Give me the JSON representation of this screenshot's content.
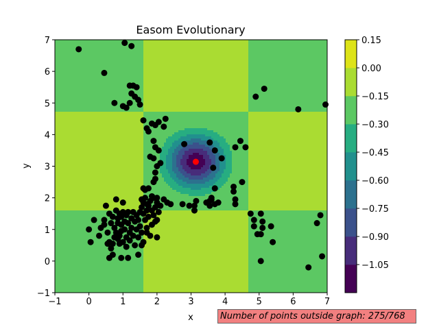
{
  "chart_data": {
    "type": "contour-scatter",
    "title": "Easom Evolutionary",
    "xlabel": "x",
    "ylabel": "y",
    "xlim": [
      -1,
      7
    ],
    "ylim": [
      -1,
      7
    ],
    "xticks": [
      "−1",
      "0",
      "1",
      "2",
      "3",
      "4",
      "5",
      "6",
      "7"
    ],
    "yticks": [
      "−1",
      "0",
      "1",
      "2",
      "3",
      "4",
      "5",
      "6",
      "7"
    ],
    "colorbar": {
      "levels": [
        -1.05,
        -0.9,
        -0.75,
        -0.6,
        -0.45,
        -0.3,
        -0.15,
        0.0,
        0.15
      ],
      "labels": [
        "0.15",
        "0.00",
        "−0.15",
        "−0.30",
        "−0.45",
        "−0.60",
        "−0.75",
        "−0.90",
        "−1.05"
      ],
      "colors": [
        "#440154",
        "#472c7a",
        "#3b518b",
        "#2c718e",
        "#21908d",
        "#27ad81",
        "#5cc863",
        "#aadc32",
        "#dde318"
      ]
    },
    "contour": {
      "function": "easom",
      "minimum": [
        3.1416,
        3.1416
      ],
      "band_edges_x": [
        1.57,
        4.71
      ],
      "band_edges_y": [
        1.57,
        4.71
      ]
    },
    "best_point": {
      "x": 3.14,
      "y": 3.14,
      "color": "#ff0000"
    },
    "points": [
      [
        -0.3,
        6.7
      ],
      [
        1.05,
        6.9
      ],
      [
        1.25,
        6.8
      ],
      [
        0.45,
        5.95
      ],
      [
        0.75,
        5.0
      ],
      [
        1.0,
        4.9
      ],
      [
        1.1,
        4.85
      ],
      [
        1.2,
        5.0
      ],
      [
        1.25,
        5.3
      ],
      [
        1.3,
        5.55
      ],
      [
        1.4,
        5.5
      ],
      [
        1.45,
        5.1
      ],
      [
        1.5,
        4.95
      ],
      [
        1.35,
        5.2
      ],
      [
        1.2,
        5.55
      ],
      [
        4.9,
        5.2
      ],
      [
        5.15,
        5.45
      ],
      [
        6.15,
        4.8
      ],
      [
        6.95,
        4.95
      ],
      [
        1.6,
        4.45
      ],
      [
        1.7,
        4.2
      ],
      [
        1.85,
        4.35
      ],
      [
        1.95,
        4.3
      ],
      [
        2.05,
        4.4
      ],
      [
        2.2,
        4.25
      ],
      [
        2.25,
        4.5
      ],
      [
        1.75,
        4.1
      ],
      [
        1.9,
        3.8
      ],
      [
        1.95,
        3.6
      ],
      [
        1.9,
        3.25
      ],
      [
        2.0,
        3.0
      ],
      [
        1.95,
        2.8
      ],
      [
        1.9,
        2.5
      ],
      [
        1.95,
        2.6
      ],
      [
        2.1,
        3.1
      ],
      [
        2.05,
        3.5
      ],
      [
        1.8,
        3.3
      ],
      [
        1.6,
        2.3
      ],
      [
        1.75,
        2.3
      ],
      [
        1.9,
        2.0
      ],
      [
        2.0,
        2.0
      ],
      [
        2.8,
        3.7
      ],
      [
        3.55,
        3.75
      ],
      [
        3.7,
        3.5
      ],
      [
        3.9,
        3.25
      ],
      [
        3.65,
        2.95
      ],
      [
        3.7,
        2.3
      ],
      [
        4.3,
        3.6
      ],
      [
        4.45,
        3.8
      ],
      [
        4.6,
        3.6
      ],
      [
        4.25,
        2.35
      ],
      [
        4.5,
        2.5
      ],
      [
        4.25,
        2.2
      ],
      [
        4.3,
        1.95
      ],
      [
        4.3,
        1.8
      ],
      [
        2.3,
        1.85
      ],
      [
        2.4,
        1.8
      ],
      [
        2.75,
        1.8
      ],
      [
        2.95,
        1.75
      ],
      [
        3.1,
        1.75
      ],
      [
        3.15,
        1.9
      ],
      [
        3.1,
        1.6
      ],
      [
        3.45,
        1.85
      ],
      [
        3.55,
        1.9
      ],
      [
        3.6,
        2.0
      ],
      [
        3.7,
        1.8
      ],
      [
        3.8,
        1.85
      ],
      [
        3.55,
        1.75
      ],
      [
        3.6,
        1.95
      ],
      [
        4.75,
        1.5
      ],
      [
        4.85,
        1.3
      ],
      [
        4.85,
        1.1
      ],
      [
        4.95,
        0.85
      ],
      [
        5.05,
        1.5
      ],
      [
        5.1,
        1.25
      ],
      [
        5.1,
        1.05
      ],
      [
        5.05,
        0.85
      ],
      [
        5.35,
        1.1
      ],
      [
        5.4,
        0.6
      ],
      [
        5.05,
        0.0
      ],
      [
        6.7,
        1.2
      ],
      [
        6.8,
        1.45
      ],
      [
        6.85,
        0.15
      ],
      [
        6.45,
        -0.2
      ],
      [
        0.0,
        1.0
      ],
      [
        0.05,
        0.6
      ],
      [
        0.15,
        1.3
      ],
      [
        0.3,
        0.8
      ],
      [
        0.35,
        1.05
      ],
      [
        0.45,
        1.15
      ],
      [
        0.45,
        1.3
      ],
      [
        0.5,
        1.75
      ],
      [
        0.6,
        1.5
      ],
      [
        0.55,
        0.9
      ],
      [
        0.6,
        0.6
      ],
      [
        0.55,
        0.55
      ],
      [
        0.65,
        0.4
      ],
      [
        0.65,
        1.2
      ],
      [
        0.7,
        1.4
      ],
      [
        0.75,
        1.05
      ],
      [
        0.8,
        1.6
      ],
      [
        0.85,
        1.35
      ],
      [
        0.85,
        1.2
      ],
      [
        0.8,
        0.9
      ],
      [
        0.85,
        0.7
      ],
      [
        0.9,
        1.5
      ],
      [
        0.95,
        1.4
      ],
      [
        0.95,
        1.15
      ],
      [
        0.95,
        0.95
      ],
      [
        0.9,
        0.8
      ],
      [
        1.0,
        0.6
      ],
      [
        1.0,
        1.55
      ],
      [
        1.05,
        1.25
      ],
      [
        1.05,
        1.0
      ],
      [
        1.1,
        0.75
      ],
      [
        1.1,
        1.45
      ],
      [
        1.15,
        1.55
      ],
      [
        1.15,
        1.2
      ],
      [
        1.2,
        0.9
      ],
      [
        1.2,
        0.65
      ],
      [
        1.25,
        1.35
      ],
      [
        1.25,
        1.05
      ],
      [
        1.3,
        1.55
      ],
      [
        1.3,
        0.8
      ],
      [
        1.35,
        1.25
      ],
      [
        1.35,
        0.5
      ],
      [
        1.4,
        1.45
      ],
      [
        1.4,
        1.0
      ],
      [
        1.45,
        0.75
      ],
      [
        1.45,
        1.3
      ],
      [
        1.5,
        1.55
      ],
      [
        1.5,
        1.1
      ],
      [
        1.55,
        0.9
      ],
      [
        1.55,
        0.5
      ],
      [
        1.45,
        0.2
      ],
      [
        1.15,
        0.1
      ],
      [
        0.95,
        0.1
      ],
      [
        0.7,
        0.2
      ],
      [
        0.6,
        0.1
      ],
      [
        1.0,
        1.85
      ],
      [
        0.8,
        1.95
      ],
      [
        1.1,
        0.45
      ],
      [
        0.7,
        0.55
      ],
      [
        0.75,
        0.75
      ],
      [
        0.9,
        0.55
      ],
      [
        1.55,
        1.7
      ],
      [
        1.6,
        1.85
      ],
      [
        1.65,
        2.0
      ],
      [
        1.7,
        1.6
      ],
      [
        1.75,
        1.75
      ],
      [
        1.8,
        1.9
      ],
      [
        1.85,
        1.6
      ],
      [
        1.9,
        1.45
      ],
      [
        1.95,
        1.7
      ],
      [
        2.0,
        1.85
      ],
      [
        2.05,
        1.55
      ],
      [
        2.1,
        1.75
      ],
      [
        1.6,
        1.5
      ],
      [
        1.65,
        1.3
      ],
      [
        1.75,
        1.4
      ],
      [
        1.6,
        0.6
      ],
      [
        1.7,
        0.9
      ],
      [
        1.8,
        0.8
      ],
      [
        2.0,
        0.75
      ],
      [
        1.7,
        1.05
      ],
      [
        1.55,
        1.95
      ],
      [
        1.65,
        2.25
      ],
      [
        1.85,
        2.05
      ],
      [
        2.2,
        1.95
      ],
      [
        1.7,
        1.8
      ],
      [
        1.85,
        1.15
      ],
      [
        1.95,
        1.25
      ],
      [
        2.0,
        1.3
      ]
    ]
  },
  "status": {
    "text": "Number of points outside graph: 275/768"
  }
}
